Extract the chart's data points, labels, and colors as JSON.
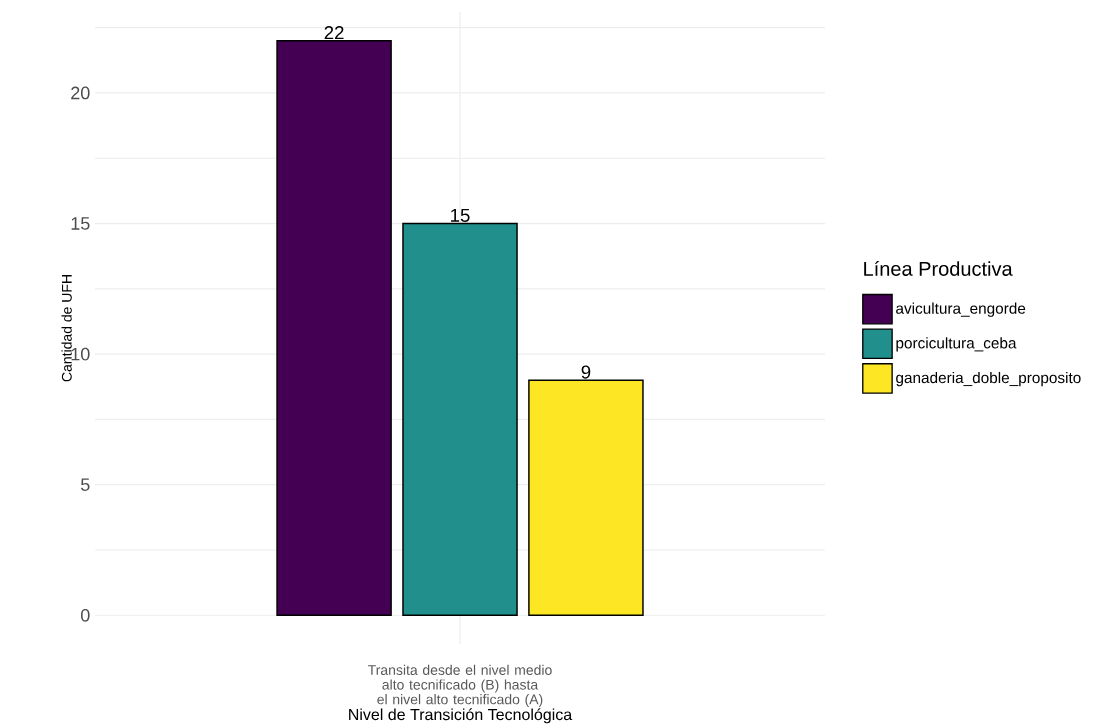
{
  "chart_data": {
    "type": "bar",
    "xlabel": "Nivel de Transición Tecnológica",
    "ylabel": "Cantidad de UFH",
    "legend_title": "Línea Productiva",
    "categories": [
      "Transita desde el nivel medio alto tecnificado (B) hasta el nivel alto tecnificado (A)"
    ],
    "series": [
      {
        "name": "avicultura_engorde",
        "color": "#440154",
        "values": [
          22
        ]
      },
      {
        "name": "porcicultura_ceba",
        "color": "#21908c",
        "values": [
          15
        ]
      },
      {
        "name": "ganaderia_doble_proposito",
        "color": "#fde725",
        "values": [
          9
        ]
      }
    ],
    "ylim": [
      -1.1,
      23.1
    ],
    "yticks": [
      0,
      {
        "value": 2.5,
        "label": null
      },
      5,
      {
        "value": 7.5,
        "label": null
      },
      10,
      {
        "value": 12.5,
        "label": null
      },
      15,
      {
        "value": 17.5,
        "label": null
      },
      20,
      {
        "value": 22.5,
        "label": null
      }
    ],
    "grid": true,
    "legend": "right",
    "data_labels": true
  }
}
